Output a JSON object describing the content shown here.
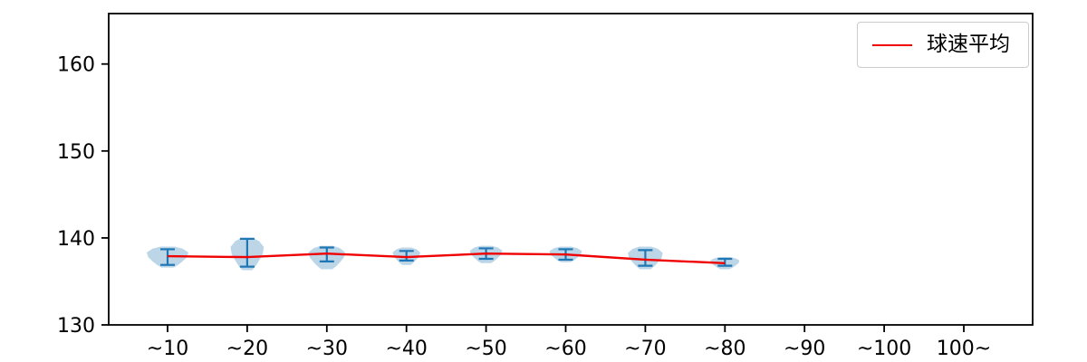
{
  "chart_data": {
    "type": "violin",
    "title": "",
    "xlabel": "",
    "ylabel": "",
    "categories": [
      "~10",
      "~20",
      "~30",
      "~40",
      "~50",
      "~60",
      "~70",
      "~80",
      "~90",
      "~100",
      "100~"
    ],
    "yticks": [
      130,
      140,
      150,
      160
    ],
    "ylim": [
      130,
      165.8
    ],
    "grid": false,
    "legend": {
      "label": "球速平均",
      "position": "top-right"
    },
    "colors": {
      "line": "#f00000",
      "violin_fill": "#bcd6e8",
      "errorbar": "#1f77b4",
      "axis": "#000000"
    },
    "series": [
      {
        "name": "球速平均",
        "type": "line",
        "color": "#f00000",
        "values": [
          137.9,
          137.8,
          138.2,
          137.8,
          138.2,
          138.1,
          137.5,
          137.1,
          null,
          null,
          null
        ]
      }
    ],
    "violins": [
      {
        "category": "~10",
        "min": 136.6,
        "max": 139.0,
        "mean": 137.9,
        "err_low": 136.9,
        "err_high": 138.7,
        "width": 1.0
      },
      {
        "category": "~20",
        "min": 136.3,
        "max": 140.0,
        "mean": 137.8,
        "err_low": 136.7,
        "err_high": 139.9,
        "width": 0.8
      },
      {
        "category": "~30",
        "min": 136.4,
        "max": 139.1,
        "mean": 138.2,
        "err_low": 137.3,
        "err_high": 138.9,
        "width": 0.88
      },
      {
        "category": "~40",
        "min": 136.9,
        "max": 138.9,
        "mean": 137.8,
        "err_low": 137.4,
        "err_high": 138.5,
        "width": 0.66
      },
      {
        "category": "~50",
        "min": 137.1,
        "max": 139.1,
        "mean": 138.2,
        "err_low": 137.6,
        "err_high": 138.8,
        "width": 0.78
      },
      {
        "category": "~60",
        "min": 137.2,
        "max": 139.0,
        "mean": 138.1,
        "err_low": 137.5,
        "err_high": 138.7,
        "width": 0.78
      },
      {
        "category": "~70",
        "min": 136.4,
        "max": 139.0,
        "mean": 137.5,
        "err_low": 136.8,
        "err_high": 138.6,
        "width": 0.84
      },
      {
        "category": "~80",
        "min": 136.4,
        "max": 137.8,
        "mean": 137.1,
        "err_low": 136.8,
        "err_high": 137.6,
        "width": 0.7
      }
    ]
  }
}
